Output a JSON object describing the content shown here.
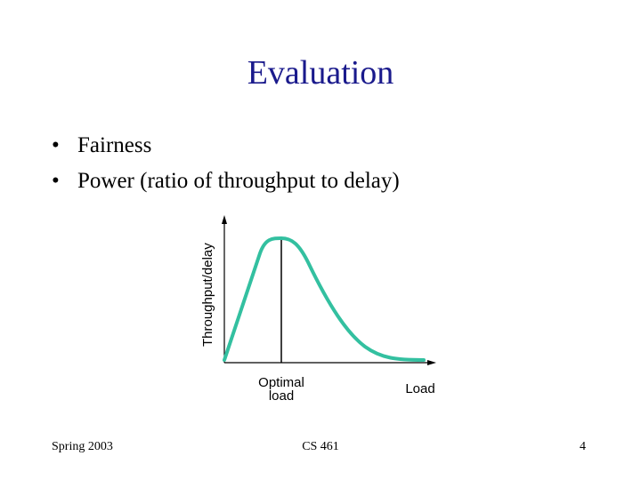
{
  "slide": {
    "title": "Evaluation",
    "bullets": [
      "Fairness",
      "Power (ratio of throughput to delay)"
    ]
  },
  "diagram": {
    "y_axis_label": "Throughput/delay",
    "x_axis_label": "Load",
    "optimal_label_line1": "Optimal",
    "optimal_label_line2": "load",
    "curve_color": "#33c0a0",
    "axis_color": "#000000"
  },
  "footer": {
    "left": "Spring 2003",
    "center": "CS 461",
    "right": "4"
  },
  "colors": {
    "title": "#1a1a8c",
    "text": "#000000",
    "background": "#ffffff"
  }
}
